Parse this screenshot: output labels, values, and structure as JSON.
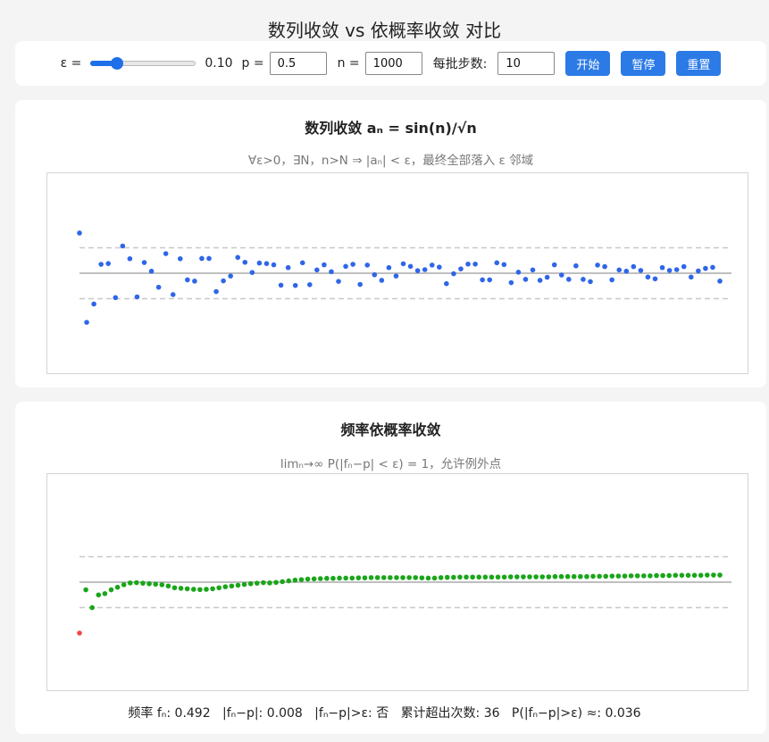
{
  "page_title": "数列收敛 vs 依概率收敛 对比",
  "controls": {
    "epsilon_label": "ε =",
    "epsilon_value": "0.10",
    "epsilon_fraction": 0.25,
    "p_label": "p =",
    "p_value": "0.5",
    "n_label": "n =",
    "n_value": "1000",
    "batch_label": "每批步数:",
    "batch_value": "10",
    "start_label": "开始",
    "pause_label": "暂停",
    "reset_label": "重置",
    "accent_color": "#2c7ae6"
  },
  "sequence_panel": {
    "title": "数列收敛 aₙ = sin(n)/√n",
    "subtitle": "∀ε>0，∃N，n>N ⇒ |aₙ| < ε，最终全部落入 ε 邻域"
  },
  "probability_panel": {
    "title": "频率依概率收敛",
    "subtitle": "limₙ→∞ P(|fₙ−p| < ε) = 1，允许例外点"
  },
  "status": {
    "freq_label": "频率 fₙ:",
    "freq_value": "0.492",
    "dev_label": "|fₙ−p|:",
    "dev_value": "0.008",
    "exceed_label": "|fₙ−p|>ε:",
    "exceed_value": "否",
    "cum_label": "累计超出次数:",
    "cum_value": "36",
    "prob_label": "P(|fₙ−p|>ε) ≈:",
    "prob_value": "0.036"
  },
  "chart_data": [
    {
      "type": "scatter",
      "epsilon_band": 0.1,
      "series": [
        {
          "color": "#2f66e8",
          "values": [
            0.158,
            -0.193,
            -0.121,
            0.035,
            0.038,
            -0.096,
            0.107,
            0.057,
            -0.093,
            0.042,
            0.008,
            -0.055,
            0.077,
            -0.084,
            0.057,
            -0.026,
            -0.031,
            0.058,
            0.058,
            -0.072,
            -0.03,
            -0.011,
            0.062,
            0.043,
            0.003,
            0.04,
            0.038,
            0.033,
            -0.047,
            0.022,
            -0.048,
            0.041,
            -0.045,
            0.013,
            0.033,
            0.006,
            -0.032,
            0.027,
            0.035,
            -0.044,
            0.032,
            -0.006,
            -0.028,
            0.022,
            -0.011,
            0.037,
            0.027,
            0.01,
            0.014,
            0.032,
            0.024,
            -0.041,
            -0.002,
            0.017,
            0.036,
            0.036,
            -0.026,
            -0.026,
            0.041,
            0.034,
            -0.037,
            0.004,
            -0.024,
            0.013,
            -0.028,
            -0.016,
            0.033,
            -0.007,
            -0.024,
            0.029,
            -0.024,
            -0.033,
            0.032,
            0.026,
            -0.026,
            0.013,
            0.008,
            0.026,
            0.011,
            -0.015,
            -0.022,
            0.022,
            0.011,
            0.014,
            0.026,
            -0.015,
            0.009,
            0.019,
            0.023,
            -0.031
          ]
        }
      ]
    },
    {
      "type": "scatter",
      "p": 0.5,
      "epsilon_band": 0.1,
      "in_band_color": "#1aa51a",
      "out_band_color": "#f04848",
      "series": [
        {
          "values": [
            0.3,
            0.47,
            0.4,
            0.45,
            0.455,
            0.47,
            0.48,
            0.49,
            0.497,
            0.498,
            0.496,
            0.494,
            0.492,
            0.49,
            0.485,
            0.478,
            0.476,
            0.474,
            0.472,
            0.471,
            0.472,
            0.474,
            0.478,
            0.482,
            0.485,
            0.488,
            0.491,
            0.494,
            0.496,
            0.498,
            0.497,
            0.499,
            0.502,
            0.505,
            0.508,
            0.51,
            0.512,
            0.513,
            0.514,
            0.515,
            0.515,
            0.516,
            0.516,
            0.516,
            0.517,
            0.517,
            0.518,
            0.518,
            0.518,
            0.518,
            0.518,
            0.518,
            0.518,
            0.518,
            0.517,
            0.516,
            0.516,
            0.518,
            0.519,
            0.519,
            0.52,
            0.52,
            0.52,
            0.52,
            0.52,
            0.52,
            0.52,
            0.52,
            0.521,
            0.521,
            0.521,
            0.521,
            0.521,
            0.521,
            0.521,
            0.522,
            0.522,
            0.522,
            0.522,
            0.522,
            0.522,
            0.523,
            0.523,
            0.523,
            0.524,
            0.524,
            0.524,
            0.525,
            0.525,
            0.525,
            0.525,
            0.526,
            0.526,
            0.526,
            0.527,
            0.527,
            0.527,
            0.527,
            0.527,
            0.528,
            0.528,
            0.528
          ]
        }
      ]
    }
  ]
}
